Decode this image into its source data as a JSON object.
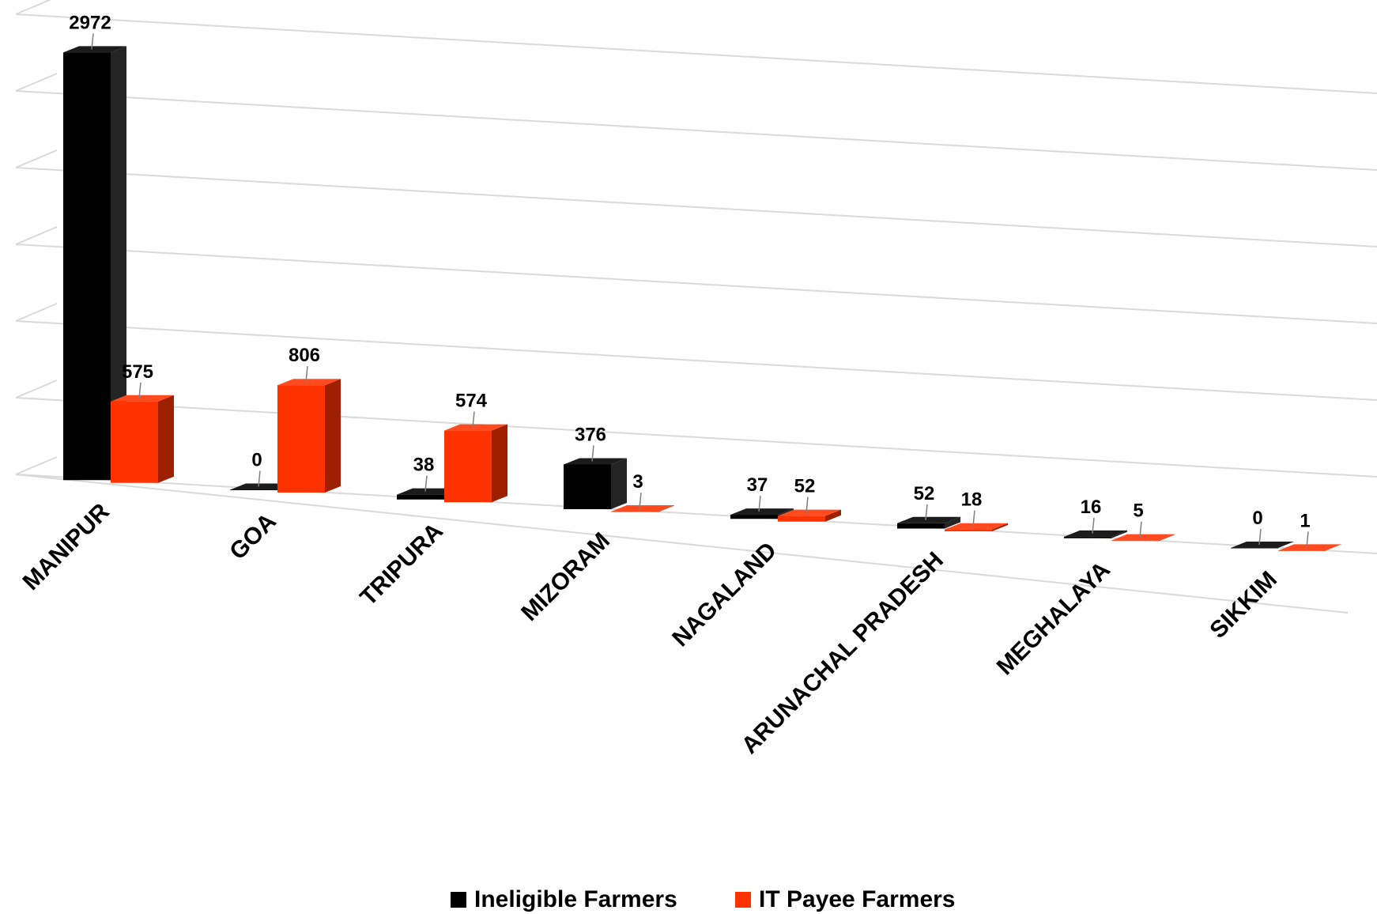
{
  "chart_data": {
    "type": "bar",
    "style": "3d-clustered-column",
    "categories": [
      "MANIPUR",
      "GOA",
      "TRIPURA",
      "MIZORAM",
      "NAGALAND",
      "ARUNACHAL PRADESH",
      "MEGHALAYA",
      "SIKKIM"
    ],
    "series": [
      {
        "name": "Ineligible Farmers",
        "values": [
          2972,
          0,
          38,
          376,
          37,
          52,
          16,
          0
        ],
        "color": "#000000"
      },
      {
        "name": "IT Payee Farmers",
        "values": [
          575,
          806,
          574,
          3,
          52,
          18,
          5,
          1
        ],
        "color": "#FF3300"
      }
    ],
    "ylim": [
      0,
      3000
    ],
    "grid": true,
    "legend_position": "bottom"
  }
}
